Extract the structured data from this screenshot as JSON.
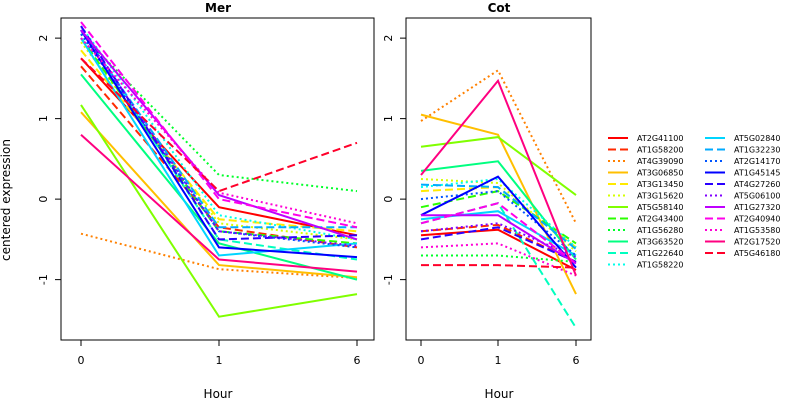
{
  "chart_data": {
    "type": "line",
    "ylabel": "centered expression",
    "xlabel": "Hour",
    "categories": [
      "0",
      "1",
      "6"
    ],
    "ylim": [
      -1.75,
      2.25
    ],
    "yticks": [
      -1,
      0,
      1,
      2
    ],
    "grid": false,
    "legend_position": "right",
    "panels": [
      {
        "title": "Mer",
        "series": [
          {
            "name": "AT2G41100",
            "color": "#ff0000",
            "dash": "solid",
            "values": [
              1.75,
              -0.1,
              -0.45
            ]
          },
          {
            "name": "AT1G58200",
            "color": "#ff2a00",
            "dash": "dashed",
            "values": [
              1.65,
              -0.35,
              -0.6
            ]
          },
          {
            "name": "AT4G39090",
            "color": "#ff8000",
            "dash": "dotted",
            "values": [
              -0.43,
              -0.87,
              -0.98
            ]
          },
          {
            "name": "AT3G06850",
            "color": "#ffbf00",
            "dash": "solid",
            "values": [
              1.08,
              -0.82,
              -0.97
            ]
          },
          {
            "name": "AT3G13450",
            "color": "#ffea00",
            "dash": "dashed",
            "values": [
              1.85,
              -0.25,
              -0.4
            ]
          },
          {
            "name": "AT3G15620",
            "color": "#d5ff00",
            "dash": "dotted",
            "values": [
              1.95,
              -0.3,
              -0.5
            ]
          },
          {
            "name": "AT5G58140",
            "color": "#80ff00",
            "dash": "solid",
            "values": [
              1.17,
              -1.46,
              -1.18
            ]
          },
          {
            "name": "AT2G43400",
            "color": "#2bff00",
            "dash": "dashed",
            "values": [
              2.0,
              -0.4,
              -0.55
            ]
          },
          {
            "name": "AT1G56280",
            "color": "#00ff2a",
            "dash": "dotted",
            "values": [
              2.05,
              0.3,
              0.1
            ]
          },
          {
            "name": "AT3G63520",
            "color": "#00ff80",
            "dash": "solid",
            "values": [
              1.55,
              -0.55,
              -1.0
            ]
          },
          {
            "name": "AT1G22640",
            "color": "#00ffbf",
            "dash": "dashed",
            "values": [
              2.1,
              -0.5,
              -0.75
            ]
          },
          {
            "name": "AT1G58220",
            "color": "#00ffea",
            "dash": "dotted",
            "values": [
              2.15,
              -0.2,
              -0.5
            ]
          },
          {
            "name": "AT5G02840",
            "color": "#00d5ff",
            "dash": "solid",
            "values": [
              2.0,
              -0.7,
              -0.55
            ]
          },
          {
            "name": "AT1G32230",
            "color": "#00aaff",
            "dash": "dashed",
            "values": [
              2.1,
              -0.35,
              -0.35
            ]
          },
          {
            "name": "AT2G14170",
            "color": "#0055ff",
            "dash": "dotted",
            "values": [
              2.05,
              -0.4,
              -0.6
            ]
          },
          {
            "name": "AT1G45145",
            "color": "#0000ff",
            "dash": "solid",
            "values": [
              2.1,
              -0.6,
              -0.72
            ]
          },
          {
            "name": "AT4G27260",
            "color": "#2a00ff",
            "dash": "dashed",
            "values": [
              2.15,
              -0.5,
              -0.45
            ]
          },
          {
            "name": "AT5G06100",
            "color": "#8000ff",
            "dash": "dotted",
            "values": [
              2.1,
              -0.4,
              -0.58
            ]
          },
          {
            "name": "AT1G27320",
            "color": "#bf00ff",
            "dash": "solid",
            "values": [
              2.1,
              0.05,
              -0.5
            ]
          },
          {
            "name": "AT2G40940",
            "color": "#ff00ea",
            "dash": "dashed",
            "values": [
              2.2,
              0.0,
              -0.35
            ]
          },
          {
            "name": "AT1G53580",
            "color": "#ff00d5",
            "dash": "dotted",
            "values": [
              2.0,
              0.08,
              -0.3
            ]
          },
          {
            "name": "AT2G17520",
            "color": "#ff0080",
            "dash": "solid",
            "values": [
              0.8,
              -0.75,
              -0.9
            ]
          },
          {
            "name": "AT5G46180",
            "color": "#ff002a",
            "dash": "dashed",
            "values": [
              1.75,
              0.1,
              0.7
            ]
          }
        ]
      },
      {
        "title": "Cot",
        "series": [
          {
            "name": "AT2G41100",
            "color": "#ff0000",
            "dash": "solid",
            "values": [
              -0.45,
              -0.38,
              -0.88
            ]
          },
          {
            "name": "AT1G58200",
            "color": "#ff2a00",
            "dash": "dashed",
            "values": [
              -0.4,
              -0.32,
              -0.78
            ]
          },
          {
            "name": "AT4G39090",
            "color": "#ff8000",
            "dash": "dotted",
            "values": [
              0.97,
              1.6,
              -0.3
            ]
          },
          {
            "name": "AT3G06850",
            "color": "#ffbf00",
            "dash": "solid",
            "values": [
              1.05,
              0.8,
              -1.18
            ]
          },
          {
            "name": "AT3G13450",
            "color": "#ffea00",
            "dash": "dashed",
            "values": [
              0.1,
              0.15,
              -0.6
            ]
          },
          {
            "name": "AT3G15620",
            "color": "#d5ff00",
            "dash": "dotted",
            "values": [
              0.25,
              0.2,
              -0.65
            ]
          },
          {
            "name": "AT5G58140",
            "color": "#80ff00",
            "dash": "solid",
            "values": [
              0.65,
              0.77,
              0.05
            ]
          },
          {
            "name": "AT2G43400",
            "color": "#2bff00",
            "dash": "dashed",
            "values": [
              -0.1,
              0.1,
              -0.55
            ]
          },
          {
            "name": "AT1G56280",
            "color": "#00ff2a",
            "dash": "dotted",
            "values": [
              -0.7,
              -0.7,
              -0.78
            ]
          },
          {
            "name": "AT3G63520",
            "color": "#00ff80",
            "dash": "solid",
            "values": [
              0.35,
              0.47,
              -0.75
            ]
          },
          {
            "name": "AT1G22640",
            "color": "#00ffbf",
            "dash": "dashed",
            "values": [
              -0.3,
              -0.05,
              -1.6
            ]
          },
          {
            "name": "AT1G58220",
            "color": "#00ffea",
            "dash": "dotted",
            "values": [
              0.15,
              0.25,
              -0.6
            ]
          },
          {
            "name": "AT5G02840",
            "color": "#00d5ff",
            "dash": "solid",
            "values": [
              -0.25,
              -0.15,
              -0.7
            ]
          },
          {
            "name": "AT1G32230",
            "color": "#00aaff",
            "dash": "dashed",
            "values": [
              0.18,
              0.15,
              -0.62
            ]
          },
          {
            "name": "AT2G14170",
            "color": "#0055ff",
            "dash": "dotted",
            "values": [
              0.0,
              0.1,
              -0.7
            ]
          },
          {
            "name": "AT1G45145",
            "color": "#0000ff",
            "dash": "solid",
            "values": [
              -0.2,
              0.28,
              -0.85
            ]
          },
          {
            "name": "AT4G27260",
            "color": "#2a00ff",
            "dash": "dashed",
            "values": [
              -0.5,
              -0.35,
              -0.78
            ]
          },
          {
            "name": "AT5G06100",
            "color": "#8000ff",
            "dash": "dotted",
            "values": [
              -0.4,
              -0.3,
              -0.72
            ]
          },
          {
            "name": "AT1G27320",
            "color": "#bf00ff",
            "dash": "solid",
            "values": [
              -0.2,
              -0.2,
              -0.8
            ]
          },
          {
            "name": "AT2G40940",
            "color": "#ff00ea",
            "dash": "dashed",
            "values": [
              -0.3,
              -0.05,
              -0.8
            ]
          },
          {
            "name": "AT1G53580",
            "color": "#ff00d5",
            "dash": "dotted",
            "values": [
              -0.6,
              -0.55,
              -0.95
            ]
          },
          {
            "name": "AT2G17520",
            "color": "#ff0080",
            "dash": "solid",
            "values": [
              0.3,
              1.47,
              -0.95
            ]
          },
          {
            "name": "AT5G46180",
            "color": "#ff002a",
            "dash": "dashed",
            "values": [
              -0.82,
              -0.82,
              -0.85
            ]
          }
        ]
      }
    ]
  }
}
